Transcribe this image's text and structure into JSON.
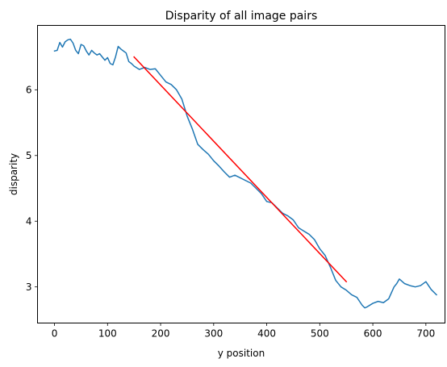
{
  "chart_data": {
    "type": "line",
    "title": "Disparity of all image pairs",
    "xlabel": "y position",
    "ylabel": "disparity",
    "xlim": [
      -32,
      736
    ],
    "ylim": [
      2.45,
      6.98
    ],
    "xticks": [
      0,
      100,
      200,
      300,
      400,
      500,
      600,
      700
    ],
    "yticks": [
      3,
      4,
      5,
      6
    ],
    "grid": false,
    "legend": "none",
    "series": [
      {
        "color": "#1f77b4",
        "x": [
          0,
          5,
          10,
          15,
          20,
          25,
          30,
          35,
          40,
          45,
          50,
          55,
          60,
          65,
          70,
          75,
          80,
          85,
          90,
          95,
          100,
          105,
          110,
          115,
          120,
          125,
          130,
          135,
          140,
          145,
          150,
          160,
          170,
          180,
          190,
          200,
          210,
          220,
          230,
          240,
          250,
          260,
          270,
          280,
          290,
          300,
          310,
          320,
          330,
          340,
          350,
          360,
          370,
          380,
          390,
          400,
          410,
          420,
          430,
          440,
          450,
          460,
          470,
          480,
          490,
          500,
          510,
          520,
          530,
          540,
          550,
          560,
          570,
          575,
          580,
          585,
          590,
          600,
          610,
          620,
          630,
          640,
          645,
          650,
          660,
          670,
          680,
          690,
          700,
          710,
          720
        ],
        "y": [
          6.59,
          6.6,
          6.72,
          6.65,
          6.73,
          6.76,
          6.77,
          6.71,
          6.6,
          6.55,
          6.69,
          6.67,
          6.59,
          6.53,
          6.6,
          6.56,
          6.53,
          6.55,
          6.5,
          6.45,
          6.49,
          6.4,
          6.38,
          6.5,
          6.66,
          6.62,
          6.59,
          6.56,
          6.43,
          6.4,
          6.36,
          6.31,
          6.34,
          6.31,
          6.32,
          6.22,
          6.12,
          6.08,
          6.0,
          5.86,
          5.6,
          5.4,
          5.17,
          5.09,
          5.02,
          4.92,
          4.84,
          4.75,
          4.67,
          4.7,
          4.66,
          4.62,
          4.58,
          4.5,
          4.42,
          4.3,
          4.28,
          4.2,
          4.12,
          4.08,
          4.02,
          3.9,
          3.85,
          3.8,
          3.72,
          3.58,
          3.48,
          3.3,
          3.1,
          3.0,
          2.95,
          2.88,
          2.84,
          2.78,
          2.72,
          2.68,
          2.7,
          2.75,
          2.78,
          2.76,
          2.82,
          3.0,
          3.05,
          3.12,
          3.05,
          3.02,
          3.0,
          3.02,
          3.08,
          2.96,
          2.88
        ]
      },
      {
        "color": "#ff0000",
        "x": [
          150,
          550
        ],
        "y": [
          6.5,
          3.08
        ]
      }
    ]
  }
}
